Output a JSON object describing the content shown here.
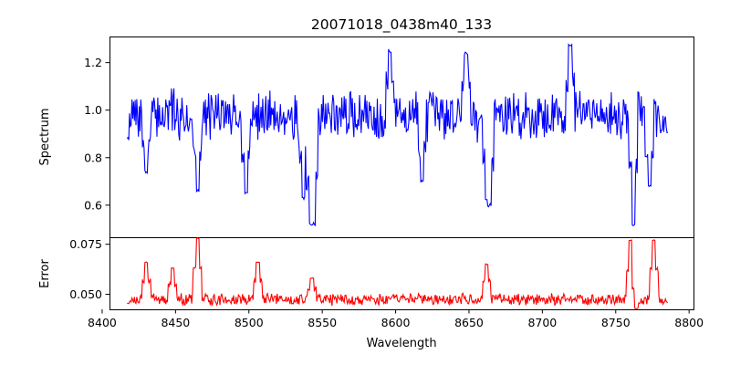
{
  "chart_data": {
    "type": "line",
    "title": "20071018_0438m40_133",
    "xlabel": "Wavelength",
    "x_range": [
      8417,
      8786
    ],
    "xlim": [
      8405,
      8803
    ],
    "xticks": [
      8400,
      8450,
      8500,
      8550,
      8600,
      8650,
      8700,
      8750,
      8800
    ],
    "panels": [
      {
        "id": "spectrum",
        "ylabel": "Spectrum",
        "ylim": [
          0.465,
          1.31
        ],
        "yticks": [
          0.6,
          0.8,
          1.0,
          1.2
        ],
        "ytick_labels": [
          "0.6",
          "0.8",
          "1.0",
          "1.2"
        ],
        "series": [
          {
            "color": "#0000ff",
            "noise": 0.09,
            "base": 0.98,
            "seed": 7
          }
        ],
        "features": [
          {
            "x": 8417,
            "y": 0.88
          },
          {
            "x": 8430,
            "y": 0.74
          },
          {
            "x": 8465,
            "y": 0.66
          },
          {
            "x": 8498,
            "y": 0.65
          },
          {
            "x": 8537,
            "y": 0.63
          },
          {
            "x": 8542,
            "y": 0.52
          },
          {
            "x": 8544,
            "y": 0.52
          },
          {
            "x": 8596,
            "y": 1.25
          },
          {
            "x": 8618,
            "y": 0.7
          },
          {
            "x": 8648,
            "y": 1.24
          },
          {
            "x": 8662,
            "y": 0.65
          },
          {
            "x": 8664,
            "y": 0.6
          },
          {
            "x": 8719,
            "y": 1.27
          },
          {
            "x": 8762,
            "y": 0.52
          },
          {
            "x": 8773,
            "y": 0.68
          },
          {
            "x": 8786,
            "y": 0.9
          }
        ]
      },
      {
        "id": "error",
        "ylabel": "Error",
        "ylim": [
          0.0425,
          0.0785
        ],
        "yticks": [
          0.05,
          0.075
        ],
        "ytick_labels": [
          "0.050",
          "0.075"
        ],
        "series": [
          {
            "color": "#ff0000",
            "noise": 0.0025,
            "base": 0.0475,
            "seed": 13
          }
        ],
        "features": [
          {
            "x": 8417,
            "y": 0.0455
          },
          {
            "x": 8430,
            "y": 0.066
          },
          {
            "x": 8448,
            "y": 0.063
          },
          {
            "x": 8465,
            "y": 0.078
          },
          {
            "x": 8506,
            "y": 0.066
          },
          {
            "x": 8543,
            "y": 0.058
          },
          {
            "x": 8662,
            "y": 0.065
          },
          {
            "x": 8760,
            "y": 0.077
          },
          {
            "x": 8764,
            "y": 0.043
          },
          {
            "x": 8776,
            "y": 0.077
          },
          {
            "x": 8786,
            "y": 0.046
          }
        ]
      }
    ]
  }
}
